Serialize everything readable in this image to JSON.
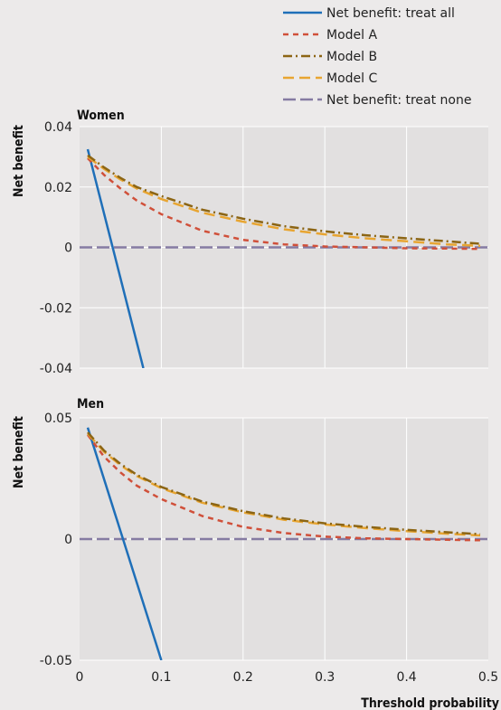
{
  "chart_data": [
    {
      "type": "line",
      "title": "Women",
      "xlabel": "",
      "ylabel": "Net benefit",
      "xlim": [
        0,
        0.5
      ],
      "ylim": [
        -0.04,
        0.04
      ],
      "x_ticks": [
        "0",
        "0.1",
        "0.2",
        "0.3",
        "0.4",
        "0.5"
      ],
      "y_ticks": [
        "0.04",
        "0.02",
        "0",
        "-0.02",
        "-0.04"
      ],
      "y_tick_values": [
        0.04,
        0.02,
        0,
        -0.02,
        -0.04
      ],
      "series": [
        {
          "name": "Net benefit: treat all",
          "x": [
            0.01,
            0.078
          ],
          "y": [
            0.0325,
            -0.04
          ],
          "color": "#1f6fb8",
          "dash": "solid"
        },
        {
          "name": "Model A",
          "x": [
            0.01,
            0.03,
            0.05,
            0.07,
            0.1,
            0.15,
            0.2,
            0.25,
            0.3,
            0.35,
            0.4,
            0.45,
            0.49
          ],
          "y": [
            0.0295,
            0.024,
            0.0195,
            0.0155,
            0.011,
            0.0055,
            0.0025,
            0.001,
            0.0003,
            0.0,
            -0.0003,
            -0.0004,
            -0.0005
          ],
          "color": "#d0503a",
          "dash": "6 5"
        },
        {
          "name": "Model B",
          "x": [
            0.01,
            0.03,
            0.05,
            0.07,
            0.1,
            0.15,
            0.2,
            0.25,
            0.3,
            0.35,
            0.4,
            0.45,
            0.49
          ],
          "y": [
            0.0305,
            0.0265,
            0.023,
            0.02,
            0.017,
            0.0125,
            0.0095,
            0.007,
            0.0053,
            0.004,
            0.003,
            0.002,
            0.0012
          ],
          "color": "#8c6514",
          "dash": "10 4 2 4"
        },
        {
          "name": "Model C",
          "x": [
            0.01,
            0.03,
            0.05,
            0.07,
            0.1,
            0.15,
            0.2,
            0.25,
            0.3,
            0.35,
            0.4,
            0.45,
            0.49
          ],
          "y": [
            0.03,
            0.026,
            0.0225,
            0.0195,
            0.016,
            0.0115,
            0.0085,
            0.006,
            0.0043,
            0.003,
            0.002,
            0.001,
            0.0005
          ],
          "color": "#e8a531",
          "dash": "12 6"
        },
        {
          "name": "Net benefit: treat none",
          "x": [
            0.0,
            0.5
          ],
          "y": [
            0.0,
            0.0
          ],
          "color": "#857ba2",
          "dash": "14 5"
        }
      ]
    },
    {
      "type": "line",
      "title": "Men",
      "xlabel": "Threshold probability",
      "ylabel": "Net benefit",
      "xlim": [
        0,
        0.5
      ],
      "ylim": [
        -0.05,
        0.05
      ],
      "x_ticks": [
        "0",
        "0.1",
        "0.2",
        "0.3",
        "0.4",
        "0.5"
      ],
      "y_ticks": [
        "0.05",
        "0",
        "-0.05"
      ],
      "y_tick_values": [
        0.05,
        0,
        -0.05
      ],
      "series": [
        {
          "name": "Net benefit: treat all",
          "x": [
            0.01,
            0.1
          ],
          "y": [
            0.046,
            -0.05
          ],
          "color": "#1f6fb8",
          "dash": "solid"
        },
        {
          "name": "Model A",
          "x": [
            0.01,
            0.03,
            0.05,
            0.07,
            0.1,
            0.15,
            0.2,
            0.25,
            0.3,
            0.35,
            0.4,
            0.45,
            0.49
          ],
          "y": [
            0.043,
            0.034,
            0.0275,
            0.022,
            0.0165,
            0.0095,
            0.005,
            0.0025,
            0.001,
            0.0003,
            0.0,
            -0.0003,
            -0.0005
          ],
          "color": "#d0503a",
          "dash": "6 5"
        },
        {
          "name": "Model B",
          "x": [
            0.01,
            0.03,
            0.05,
            0.07,
            0.1,
            0.15,
            0.2,
            0.25,
            0.3,
            0.35,
            0.4,
            0.45,
            0.49
          ],
          "y": [
            0.044,
            0.0365,
            0.031,
            0.0265,
            0.0215,
            0.0155,
            0.0115,
            0.0085,
            0.0065,
            0.005,
            0.0038,
            0.0028,
            0.002
          ],
          "color": "#8c6514",
          "dash": "10 4 2 4"
        },
        {
          "name": "Model C",
          "x": [
            0.01,
            0.03,
            0.05,
            0.07,
            0.1,
            0.15,
            0.2,
            0.25,
            0.3,
            0.35,
            0.4,
            0.45,
            0.49
          ],
          "y": [
            0.0435,
            0.036,
            0.0305,
            0.026,
            0.021,
            0.015,
            0.011,
            0.008,
            0.006,
            0.0045,
            0.0033,
            0.0022,
            0.0015
          ],
          "color": "#e8a531",
          "dash": "12 6"
        },
        {
          "name": "Net benefit: treat none",
          "x": [
            0.0,
            0.5
          ],
          "y": [
            0.0,
            0.0
          ],
          "color": "#857ba2",
          "dash": "14 5"
        }
      ]
    }
  ],
  "legend": {
    "placement": "top-right",
    "items": [
      {
        "label": "Net benefit: treat all",
        "color": "#1f6fb8",
        "dash": "solid"
      },
      {
        "label": "Model A",
        "color": "#d0503a",
        "dash": "6 5"
      },
      {
        "label": "Model B",
        "color": "#8c6514",
        "dash": "10 4 2 4"
      },
      {
        "label": "Model C",
        "color": "#e8a531",
        "dash": "12 6"
      },
      {
        "label": "Net benefit: treat none",
        "color": "#857ba2",
        "dash": "14 5"
      }
    ]
  },
  "colors": {
    "background": "#eceaea",
    "plot_bg": "#e2e0e0",
    "grid": "#ffffff"
  }
}
